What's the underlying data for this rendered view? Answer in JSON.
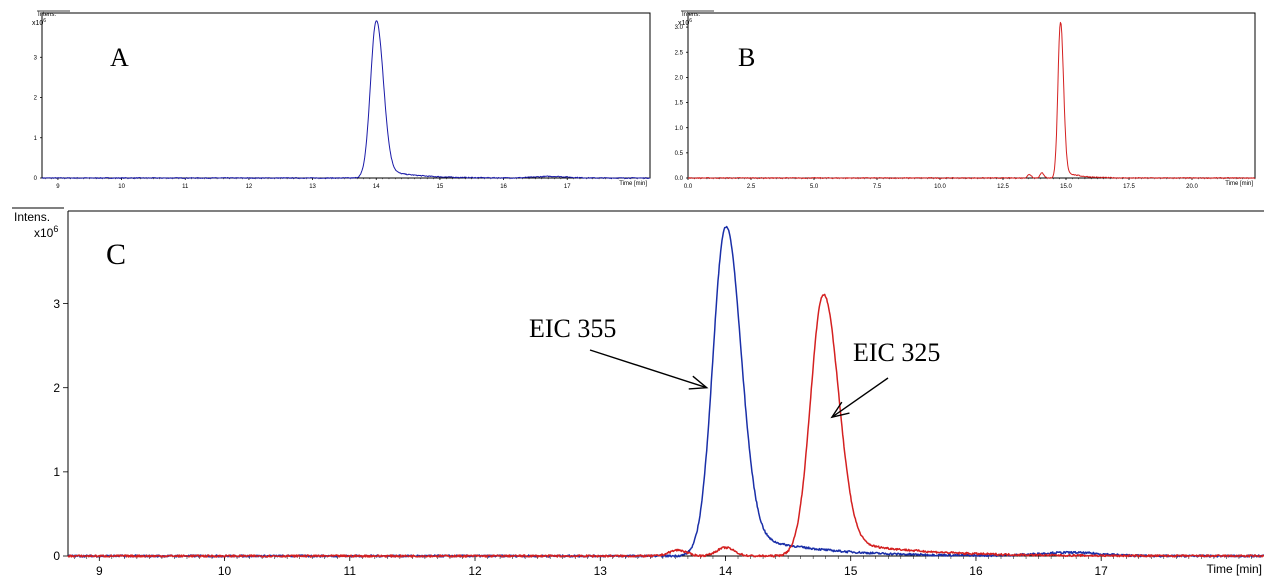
{
  "chart_data": [
    {
      "panel": "A",
      "type": "line",
      "ylabel": "Intens.",
      "ylabel_exp": "x10",
      "ylabel_exp_power": "6",
      "xlabel": "Time [min]",
      "xlim": [
        8.75,
        18.3
      ],
      "ylim": [
        0,
        4.1
      ],
      "xticks": [
        "9",
        "10",
        "11",
        "12",
        "13",
        "14",
        "15",
        "16",
        "17"
      ],
      "yticks": [
        "0",
        "1",
        "2",
        "3"
      ],
      "series": [
        {
          "color": "#1a1aa8",
          "peak_at": 14.0,
          "peak_height": 3.9,
          "width_left": 0.09,
          "width_right": 0.11,
          "tail_amp": 0.09,
          "tail_rate": 2.2,
          "shoulder": null,
          "noise": 0.012,
          "extra_peaks": [
            {
              "x": 16.75,
              "h": 0.04,
              "w": 0.25
            }
          ]
        }
      ]
    },
    {
      "panel": "B",
      "type": "line",
      "ylabel": "Intens.",
      "ylabel_exp": "x10",
      "ylabel_exp_power": "6",
      "xlabel": "Time [min]",
      "xlim": [
        0,
        22.5
      ],
      "ylim": [
        0,
        3.28
      ],
      "xticks": [
        "0.0",
        "2.5",
        "5.0",
        "7.5",
        "10.0",
        "12.5",
        "15.0",
        "17.5",
        "20.0"
      ],
      "yticks": [
        "0.0",
        "0.5",
        "1.0",
        "1.5",
        "2.0",
        "2.5",
        "3.0"
      ],
      "series": [
        {
          "color": "#d42020",
          "peak_at": 14.78,
          "peak_height": 3.1,
          "width_left": 0.1,
          "width_right": 0.12,
          "tail_amp": 0.06,
          "tail_rate": 1.8,
          "shoulder": null,
          "noise": 0.01,
          "extra_peaks": [
            {
              "x": 13.55,
              "h": 0.07,
              "w": 0.08
            },
            {
              "x": 14.05,
              "h": 0.1,
              "w": 0.08
            }
          ]
        }
      ]
    },
    {
      "panel": "C",
      "type": "line",
      "ylabel": "Intens.",
      "ylabel_exp": "x10",
      "ylabel_exp_power": "6",
      "xlabel": "Time [min]",
      "xlim": [
        8.75,
        18.3
      ],
      "ylim": [
        0,
        4.1
      ],
      "xticks": [
        "9",
        "10",
        "11",
        "12",
        "13",
        "14",
        "15",
        "16",
        "17"
      ],
      "yticks": [
        "0",
        "1",
        "2",
        "3"
      ],
      "series": [
        {
          "name": "EIC 355",
          "color": "#1a2fa8",
          "peak_at": 14.0,
          "peak_height": 3.9,
          "width_left": 0.1,
          "width_right": 0.12,
          "tail_amp": 0.12,
          "tail_rate": 2.0,
          "shoulder": null,
          "noise": 0.012,
          "extra_peaks": [
            {
              "x": 16.75,
              "h": 0.04,
              "w": 0.25
            }
          ]
        },
        {
          "name": "EIC 325",
          "color": "#d42020",
          "peak_at": 14.78,
          "peak_height": 3.1,
          "width_left": 0.1,
          "width_right": 0.12,
          "tail_amp": 0.08,
          "tail_rate": 1.8,
          "shoulder": null,
          "noise": 0.012,
          "extra_peaks": [
            {
              "x": 13.62,
              "h": 0.07,
              "w": 0.07
            },
            {
              "x": 14.0,
              "h": 0.1,
              "w": 0.07
            }
          ]
        }
      ],
      "annotations": [
        {
          "text": "EIC 355",
          "arrow_to": [
            13.85,
            2.0
          ]
        },
        {
          "text": "EIC 325",
          "arrow_to": [
            14.85,
            1.65
          ]
        }
      ]
    }
  ]
}
